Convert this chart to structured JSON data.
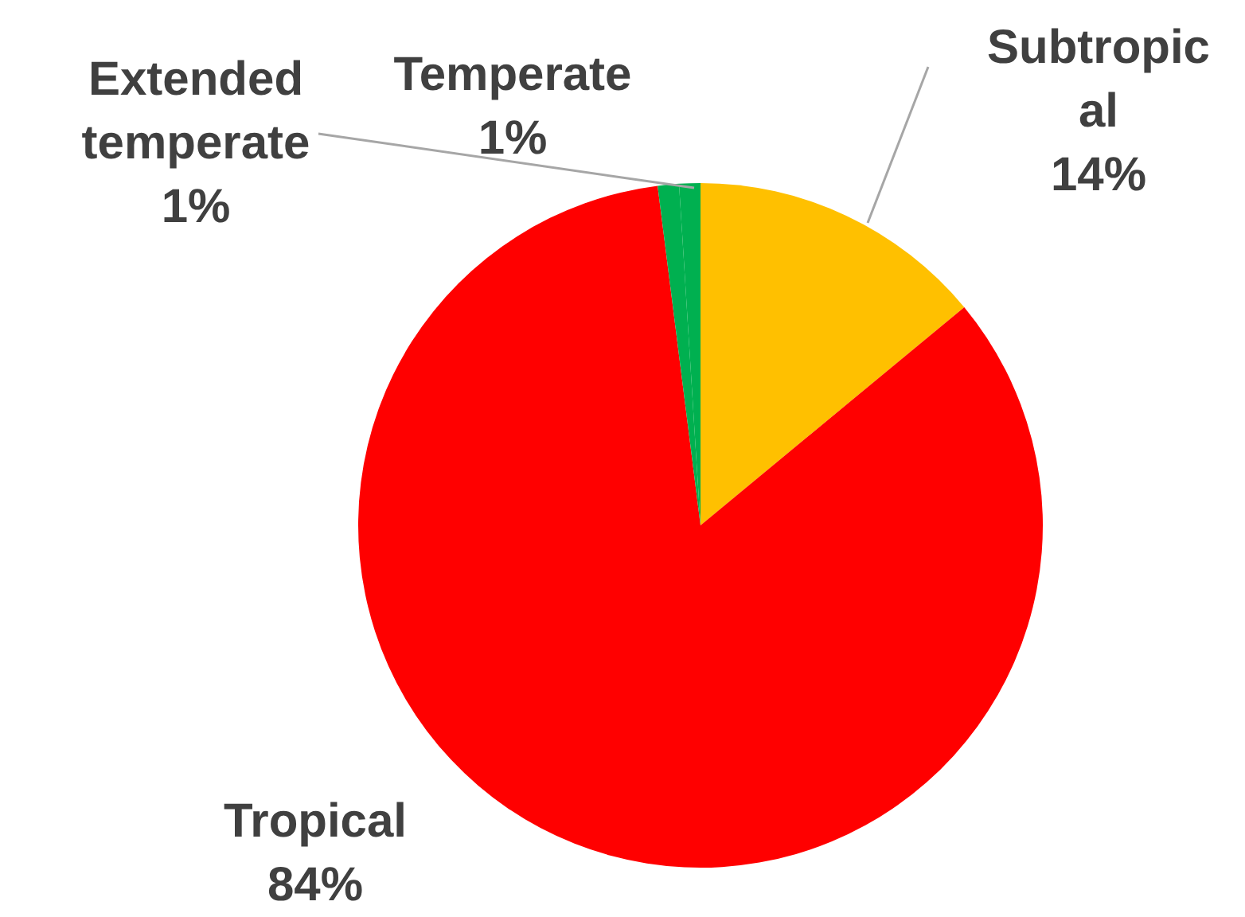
{
  "chart_data": {
    "type": "pie",
    "categories": [
      "Subtropical",
      "Tropical",
      "Temperate",
      "Extended temperate"
    ],
    "values": [
      14,
      84,
      1,
      1
    ],
    "value_labels": [
      "14%",
      "84%",
      "1%",
      "1%"
    ],
    "colors": [
      "#ffc000",
      "#ff0000",
      "#00b050",
      "#00b050"
    ]
  }
}
